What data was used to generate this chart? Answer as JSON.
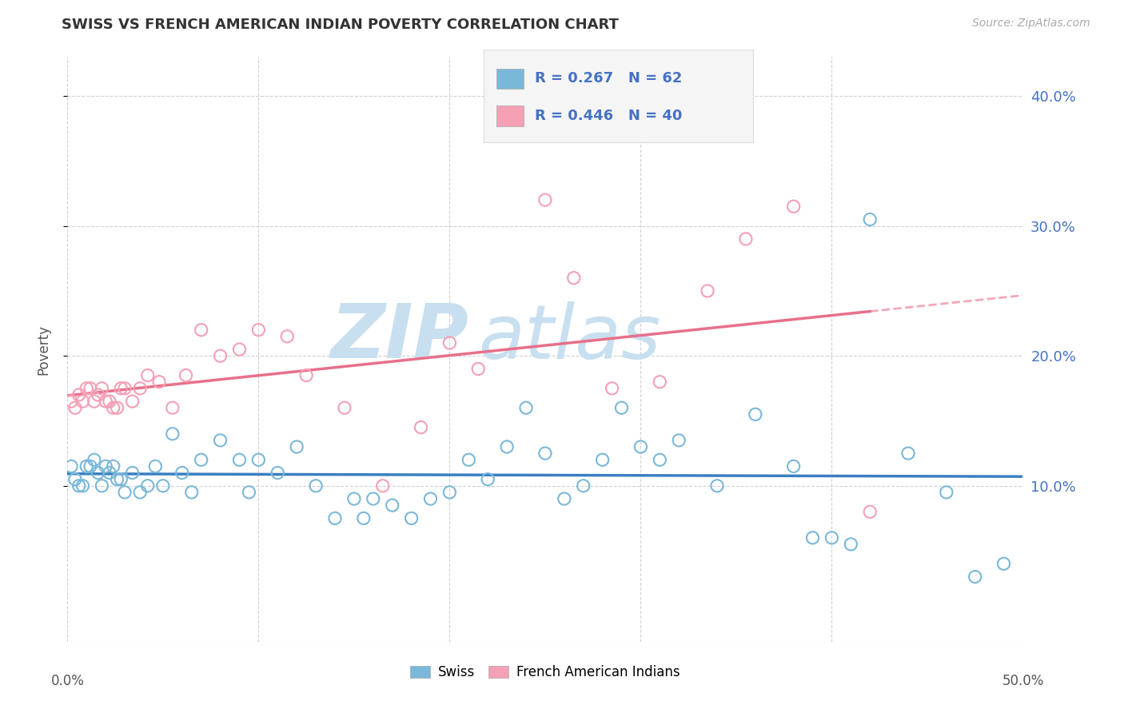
{
  "title": "SWISS VS FRENCH AMERICAN INDIAN POVERTY CORRELATION CHART",
  "source": "Source: ZipAtlas.com",
  "ylabel": "Poverty",
  "xmin": 0.0,
  "xmax": 0.5,
  "ymin": -0.02,
  "ymax": 0.43,
  "xticks": [
    0.0,
    0.1,
    0.2,
    0.3,
    0.4,
    0.5
  ],
  "xticklabels": [
    "0.0%",
    "",
    "",
    "",
    "",
    "50.0%"
  ],
  "yticks": [
    0.1,
    0.2,
    0.3,
    0.4
  ],
  "yticklabels": [
    "10.0%",
    "20.0%",
    "30.0%",
    "40.0%"
  ],
  "swiss_color": "#7ab8d9",
  "swiss_line_color": "#3a7fc1",
  "french_color": "#f4a0b5",
  "french_line_color": "#e8708a",
  "swiss_R": 0.267,
  "swiss_N": 62,
  "french_R": 0.446,
  "french_N": 40,
  "watermark_zip": "ZIP",
  "watermark_atlas": "atlas",
  "watermark_color": "#c8dff0",
  "swiss_x": [
    0.002,
    0.004,
    0.006,
    0.008,
    0.01,
    0.012,
    0.014,
    0.016,
    0.018,
    0.02,
    0.022,
    0.024,
    0.026,
    0.028,
    0.03,
    0.034,
    0.038,
    0.042,
    0.046,
    0.05,
    0.055,
    0.06,
    0.065,
    0.07,
    0.08,
    0.09,
    0.095,
    0.1,
    0.11,
    0.12,
    0.13,
    0.14,
    0.15,
    0.155,
    0.16,
    0.17,
    0.18,
    0.19,
    0.2,
    0.21,
    0.22,
    0.23,
    0.24,
    0.25,
    0.26,
    0.27,
    0.28,
    0.29,
    0.3,
    0.31,
    0.32,
    0.34,
    0.36,
    0.38,
    0.39,
    0.4,
    0.41,
    0.42,
    0.44,
    0.46,
    0.475,
    0.49
  ],
  "swiss_y": [
    0.115,
    0.105,
    0.1,
    0.1,
    0.115,
    0.115,
    0.12,
    0.11,
    0.1,
    0.115,
    0.11,
    0.115,
    0.105,
    0.105,
    0.095,
    0.11,
    0.095,
    0.1,
    0.115,
    0.1,
    0.14,
    0.11,
    0.095,
    0.12,
    0.135,
    0.12,
    0.095,
    0.12,
    0.11,
    0.13,
    0.1,
    0.075,
    0.09,
    0.075,
    0.09,
    0.085,
    0.075,
    0.09,
    0.095,
    0.12,
    0.105,
    0.13,
    0.16,
    0.125,
    0.09,
    0.1,
    0.12,
    0.16,
    0.13,
    0.12,
    0.135,
    0.1,
    0.155,
    0.115,
    0.06,
    0.06,
    0.055,
    0.305,
    0.125,
    0.095,
    0.03,
    0.04
  ],
  "french_x": [
    0.002,
    0.004,
    0.006,
    0.008,
    0.01,
    0.012,
    0.014,
    0.016,
    0.018,
    0.02,
    0.022,
    0.024,
    0.026,
    0.028,
    0.03,
    0.034,
    0.038,
    0.042,
    0.048,
    0.055,
    0.062,
    0.07,
    0.08,
    0.09,
    0.1,
    0.115,
    0.125,
    0.145,
    0.165,
    0.185,
    0.2,
    0.215,
    0.25,
    0.265,
    0.285,
    0.31,
    0.335,
    0.355,
    0.38,
    0.42
  ],
  "french_y": [
    0.165,
    0.16,
    0.17,
    0.165,
    0.175,
    0.175,
    0.165,
    0.17,
    0.175,
    0.165,
    0.165,
    0.16,
    0.16,
    0.175,
    0.175,
    0.165,
    0.175,
    0.185,
    0.18,
    0.16,
    0.185,
    0.22,
    0.2,
    0.205,
    0.22,
    0.215,
    0.185,
    0.16,
    0.1,
    0.145,
    0.21,
    0.19,
    0.32,
    0.26,
    0.175,
    0.18,
    0.25,
    0.29,
    0.315,
    0.08
  ],
  "title_color": "#333333",
  "axis_label_color": "#555555",
  "tick_color_left": "#888888",
  "tick_color_right": "#4472c4",
  "grid_color": "#cccccc",
  "legend_R_color": "#4472c4",
  "legend_bg_color": "#f5f5f5",
  "background_color": "#ffffff",
  "source_color": "#aaaaaa"
}
